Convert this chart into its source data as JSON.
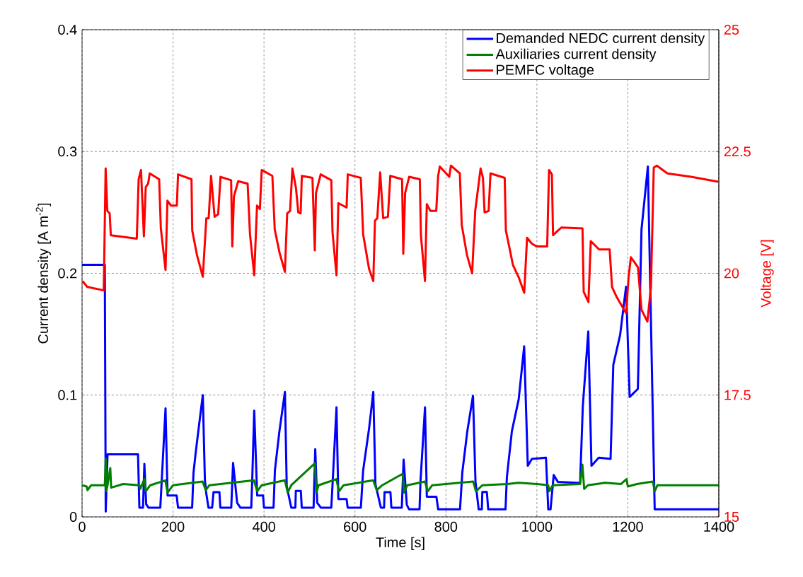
{
  "chart_data": {
    "type": "line",
    "xlabel": "Time [s]",
    "ylabel": "Current density [A m$^{-2}$]",
    "y2label": "Voltage [V]",
    "xlim": [
      0,
      1400
    ],
    "xticks": [
      0,
      200,
      400,
      600,
      800,
      1000,
      1200,
      1400
    ],
    "ylim": [
      0,
      0.4
    ],
    "yticks": [
      0,
      0.1,
      0.2,
      0.3,
      0.4
    ],
    "y2lim": [
      15,
      25
    ],
    "y2ticks": [
      15,
      17.5,
      20,
      22.5,
      25
    ],
    "grid": true,
    "legend": "top right",
    "marker": "none",
    "line_style": "solid",
    "series": [
      {
        "name": "Demanded NEDC current density",
        "color": "#0000ff",
        "x": [
          0,
          50,
          52,
          56,
          123,
          126,
          134,
          137,
          141,
          146,
          172,
          175,
          183.5,
          188,
          208,
          211,
          242,
          245,
          250,
          258,
          265.5,
          270,
          273,
          278,
          286,
          289,
          302,
          304,
          328,
          332,
          341,
          348,
          372,
          374,
          378.5,
          385,
          398,
          400,
          421,
          424,
          434,
          446,
          450,
          460,
          469,
          470,
          481,
          483,
          509,
          512.7,
          517,
          525,
          548,
          551,
          559.4,
          563.5,
          581.6,
          584,
          613,
          618,
          631,
          640.3,
          645,
          657,
          664,
          665,
          678,
          680,
          703,
          707,
          714,
          719,
          742,
          744,
          754,
          758,
          779,
          783,
          831,
          836,
          847,
          859.5,
          865,
          872,
          879,
          880,
          890,
          893,
          931,
          934,
          945,
          960,
          972,
          980,
          989,
          1020,
          1025,
          1030,
          1037,
          1046,
          1095,
          1101,
          1113,
          1120,
          1136,
          1162,
          1168,
          1183,
          1196,
          1204,
          1222,
          1230,
          1244,
          1259,
          1400
        ],
        "values": [
          0.207,
          0.207,
          0.0044,
          0.0514,
          0.0514,
          0.0076,
          0.0076,
          0.0435,
          0.0104,
          0.0076,
          0.0076,
          0.0288,
          0.0891,
          0.0175,
          0.0175,
          0.0076,
          0.0076,
          0.0363,
          0.0533,
          0.0777,
          0.1,
          0.0307,
          0.0194,
          0.0076,
          0.0076,
          0.0203,
          0.0203,
          0.0076,
          0.0076,
          0.0443,
          0.0115,
          0.0076,
          0.0076,
          0.0288,
          0.0872,
          0.0175,
          0.0175,
          0.0076,
          0.0076,
          0.0382,
          0.0706,
          0.1026,
          0.025,
          0.0076,
          0.0076,
          0.0213,
          0.0213,
          0.0076,
          0.0076,
          0.0556,
          0.0115,
          0.0076,
          0.0076,
          0.0288,
          0.09,
          0.0147,
          0.0147,
          0.0076,
          0.0076,
          0.0382,
          0.0725,
          0.1026,
          0.0269,
          0.0076,
          0.0076,
          0.0203,
          0.0203,
          0.0076,
          0.0076,
          0.047,
          0.0099,
          0.0062,
          0.0062,
          0.0288,
          0.09,
          0.0166,
          0.0166,
          0.0062,
          0.0062,
          0.0364,
          0.0703,
          0.0994,
          0.0288,
          0.0062,
          0.0062,
          0.0204,
          0.0204,
          0.0062,
          0.0062,
          0.0326,
          0.0703,
          0.0966,
          0.14,
          0.042,
          0.0476,
          0.0486,
          0.0062,
          0.0062,
          0.0344,
          0.0288,
          0.0279,
          0.091,
          0.1522,
          0.042,
          0.0486,
          0.0476,
          0.1248,
          0.1494,
          0.1889,
          0.0985,
          0.1051,
          0.236,
          0.2877,
          0.0062,
          0.0062
        ]
      },
      {
        "name": "Auxiliaries current density",
        "color": "#008000",
        "x": [
          0,
          10,
          12,
          20,
          50,
          52,
          53,
          56,
          62,
          64,
          90,
          126,
          128,
          137,
          140,
          150,
          183,
          188,
          200,
          265,
          272,
          280,
          378,
          385,
          395,
          446,
          452,
          460,
          512,
          515,
          520,
          559,
          565,
          575,
          640,
          648,
          660,
          705,
          708,
          715,
          754,
          760,
          770,
          860,
          866,
          880,
          935,
          960,
          1000,
          1025,
          1027,
          1035,
          1095,
          1100,
          1104,
          1112,
          1150,
          1185,
          1197,
          1200,
          1220,
          1255,
          1259,
          1265,
          1400
        ],
        "values": [
          0.026,
          0.025,
          0.022,
          0.026,
          0.026,
          0.0476,
          0.021,
          0.026,
          0.04,
          0.024,
          0.027,
          0.026,
          0.023,
          0.031,
          0.021,
          0.026,
          0.03,
          0.02,
          0.026,
          0.029,
          0.022,
          0.026,
          0.03,
          0.021,
          0.026,
          0.03,
          0.02,
          0.026,
          0.044,
          0.02,
          0.026,
          0.031,
          0.021,
          0.026,
          0.03,
          0.022,
          0.026,
          0.0354,
          0.02,
          0.026,
          0.029,
          0.021,
          0.026,
          0.029,
          0.021,
          0.026,
          0.027,
          0.028,
          0.027,
          0.026,
          0.021,
          0.026,
          0.027,
          0.043,
          0.023,
          0.026,
          0.028,
          0.027,
          0.031,
          0.025,
          0.027,
          0.029,
          0.021,
          0.026,
          0.026
        ]
      },
      {
        "name": "PEMFC voltage",
        "color": "#ff0000",
        "axis": "y2",
        "x": [
          1,
          11.4,
          47.7,
          51.8,
          55.5,
          60.7,
          63.2,
          120.3,
          124.4,
          129.6,
          135.9,
          140,
          145.2,
          148.8,
          169.5,
          173.2,
          183.5,
          187.7,
          195.4,
          208.4,
          211,
          240.6,
          242.2,
          252.5,
          265.5,
          273.2,
          278.4,
          283.6,
          291.4,
          299.2,
          304.4,
          327.7,
          330.3,
          333.9,
          343.3,
          364,
          369.2,
          378.5,
          384.7,
          391,
          395,
          418.4,
          423.6,
          434,
          445.9,
          451,
          457.3,
          462.5,
          470.3,
          475.4,
          480.6,
          483.2,
          506.5,
          511.7,
          514.3,
          524.6,
          548,
          550.6,
          559.4,
          563.5,
          581.6,
          584.2,
          612.8,
          618,
          631,
          640.3,
          644,
          649.1,
          655.4,
          662.1,
          672.5,
          677.7,
          703.6,
          706.2,
          710.3,
          719.2,
          742.6,
          745,
          753.9,
          758,
          765.8,
          778.7,
          782.9,
          786.5,
          807.3,
          810.9,
          830.6,
          834.8,
          846.2,
          857.6,
          864.4,
          876.2,
          881.4,
          885,
          893.9,
          898,
          929.2,
          931.8,
          947.4,
          960.3,
          972.2,
          978.4,
          988.8,
          999.2,
          1022.6,
          1026.7,
          1033,
          1035.5,
          1043.3,
          1053.7,
          1100.3,
          1102.9,
          1113.3,
          1118.5,
          1136.7,
          1160,
          1165.2,
          1175.6,
          1196.3,
          1201.5,
          1206.7,
          1222.3,
          1230,
          1243,
          1250.8,
          1257,
          1263.7,
          1287,
          1338.9,
          1398.5
        ],
        "values": [
          19.84,
          19.72,
          19.65,
          22.15,
          21.28,
          21.23,
          20.78,
          20.71,
          21.93,
          22.12,
          20.76,
          21.77,
          21.84,
          22.05,
          21.93,
          20.92,
          20.07,
          21.49,
          21.39,
          21.39,
          22.03,
          21.93,
          20.88,
          20.38,
          19.93,
          21.13,
          21.13,
          22.0,
          21.16,
          21.21,
          21.98,
          21.91,
          20.55,
          21.58,
          21.89,
          21.84,
          20.8,
          19.96,
          21.39,
          21.32,
          22.12,
          22.0,
          20.9,
          20.43,
          20.03,
          21.23,
          21.28,
          22.15,
          21.75,
          21.25,
          21.23,
          22.0,
          21.96,
          20.47,
          21.65,
          22.03,
          21.91,
          20.85,
          19.96,
          21.44,
          21.35,
          22.03,
          21.96,
          20.8,
          20.09,
          19.84,
          21.08,
          21.13,
          22.07,
          21.13,
          21.16,
          22.0,
          21.93,
          20.4,
          21.65,
          21.98,
          21.93,
          20.78,
          19.84,
          21.42,
          21.28,
          21.28,
          22.0,
          22.19,
          21.98,
          22.21,
          22.05,
          20.99,
          20.38,
          20.0,
          21.28,
          22.15,
          21.96,
          21.25,
          21.28,
          22.05,
          21.96,
          20.88,
          20.17,
          19.91,
          19.6,
          20.73,
          20.61,
          20.55,
          20.55,
          22.12,
          22.03,
          20.78,
          20.85,
          20.94,
          20.92,
          19.62,
          19.41,
          20.66,
          20.49,
          20.49,
          19.72,
          19.51,
          19.18,
          19.91,
          20.33,
          20.12,
          19.25,
          19.01,
          19.72,
          22.17,
          22.21,
          22.05,
          21.98,
          21.88
        ]
      }
    ]
  }
}
